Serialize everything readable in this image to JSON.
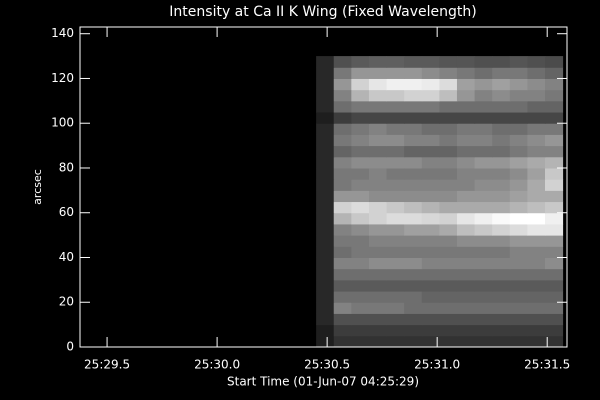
{
  "chart_data": {
    "type": "heatmap",
    "title": "Intensity at Ca II K Wing (Fixed Wavelength)",
    "x_label": "Start Time (01-Jun-07 04:25:29)",
    "y_label": "arcsec",
    "x": [
      30.49,
      30.57,
      30.65,
      30.73,
      30.81,
      30.89,
      30.97,
      31.05,
      31.13,
      31.21,
      31.29,
      31.37,
      31.45,
      31.53
    ],
    "y": [
      2.5,
      7.5,
      12.5,
      17.5,
      22.5,
      27.5,
      32.5,
      37.5,
      42.5,
      47.5,
      52.5,
      57.5,
      62.5,
      67.5,
      72.5,
      77.5,
      82.5,
      87.5,
      92.5,
      97.5,
      102.5,
      107.5,
      112.5,
      117.5,
      122.5,
      127.5
    ],
    "values": [
      [
        30,
        50,
        50,
        50,
        50,
        50,
        50,
        50,
        50,
        50,
        50,
        50,
        50,
        50
      ],
      [
        30,
        60,
        60,
        60,
        60,
        60,
        60,
        60,
        60,
        60,
        60,
        60,
        60,
        60
      ],
      [
        40,
        80,
        80,
        80,
        80,
        80,
        80,
        80,
        80,
        80,
        80,
        80,
        80,
        80
      ],
      [
        40,
        130,
        120,
        120,
        120,
        110,
        110,
        110,
        110,
        110,
        110,
        110,
        110,
        110
      ],
      [
        40,
        110,
        110,
        110,
        110,
        110,
        100,
        100,
        100,
        100,
        100,
        100,
        100,
        100
      ],
      [
        40,
        90,
        90,
        90,
        90,
        90,
        90,
        90,
        90,
        90,
        90,
        90,
        90,
        90
      ],
      [
        40,
        110,
        110,
        110,
        110,
        110,
        110,
        110,
        110,
        110,
        110,
        110,
        110,
        110
      ],
      [
        40,
        130,
        130,
        140,
        140,
        140,
        130,
        130,
        130,
        130,
        130,
        130,
        130,
        140
      ],
      [
        40,
        110,
        120,
        120,
        120,
        120,
        120,
        120,
        120,
        120,
        120,
        130,
        130,
        130
      ],
      [
        40,
        120,
        120,
        130,
        130,
        130,
        130,
        130,
        140,
        140,
        140,
        150,
        150,
        150
      ],
      [
        40,
        130,
        140,
        150,
        150,
        160,
        160,
        170,
        190,
        200,
        210,
        220,
        230,
        230
      ],
      [
        40,
        180,
        200,
        210,
        220,
        220,
        215,
        210,
        230,
        240,
        250,
        255,
        255,
        240
      ],
      [
        40,
        210,
        220,
        210,
        200,
        190,
        180,
        170,
        170,
        170,
        170,
        180,
        190,
        200
      ],
      [
        40,
        150,
        150,
        140,
        140,
        140,
        140,
        140,
        150,
        150,
        150,
        160,
        170,
        170
      ],
      [
        40,
        120,
        130,
        130,
        130,
        130,
        130,
        130,
        130,
        140,
        140,
        150,
        170,
        210
      ],
      [
        40,
        120,
        120,
        130,
        120,
        120,
        120,
        120,
        130,
        130,
        130,
        140,
        160,
        200
      ],
      [
        40,
        130,
        140,
        140,
        140,
        140,
        130,
        130,
        140,
        150,
        150,
        160,
        170,
        180
      ],
      [
        40,
        100,
        110,
        110,
        110,
        100,
        100,
        100,
        110,
        110,
        110,
        120,
        130,
        130
      ],
      [
        40,
        120,
        130,
        140,
        140,
        130,
        130,
        120,
        130,
        130,
        120,
        130,
        140,
        150
      ],
      [
        40,
        110,
        120,
        130,
        120,
        120,
        110,
        110,
        120,
        120,
        110,
        110,
        120,
        120
      ],
      [
        30,
        60,
        70,
        70,
        70,
        70,
        70,
        70,
        70,
        70,
        70,
        70,
        70,
        70
      ],
      [
        40,
        110,
        120,
        120,
        120,
        120,
        120,
        110,
        110,
        110,
        110,
        110,
        100,
        100
      ],
      [
        40,
        130,
        180,
        200,
        200,
        210,
        210,
        190,
        150,
        130,
        140,
        130,
        130,
        120
      ],
      [
        40,
        150,
        210,
        230,
        240,
        240,
        235,
        220,
        160,
        150,
        160,
        150,
        140,
        130
      ],
      [
        40,
        120,
        150,
        150,
        150,
        150,
        140,
        130,
        120,
        110,
        120,
        120,
        110,
        100
      ],
      [
        40,
        80,
        90,
        95,
        95,
        90,
        90,
        85,
        85,
        80,
        80,
        85,
        80,
        75
      ]
    ],
    "zlim": [
      0,
      255
    ],
    "xlim": [
      29.377,
      31.59
    ],
    "ylim": [
      0,
      143
    ],
    "xticks": [
      {
        "value": 29.5,
        "label": "25:29.5"
      },
      {
        "value": 30.0,
        "label": "25:30.0"
      },
      {
        "value": 30.5,
        "label": "25:30.5"
      },
      {
        "value": 31.0,
        "label": "25:31.0"
      },
      {
        "value": 31.5,
        "label": "25:31.5"
      }
    ],
    "yticks": [
      0,
      20,
      40,
      60,
      80,
      100,
      120,
      140
    ]
  }
}
